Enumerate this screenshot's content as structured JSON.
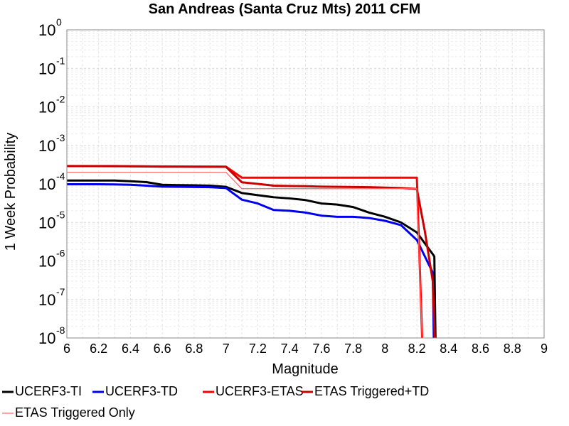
{
  "chart_data": {
    "type": "line",
    "title": "San Andreas (Santa Cruz Mts) 2011 CFM",
    "xlabel": "Magnitude",
    "ylabel": "1 Week Probability",
    "xlim": [
      6,
      9
    ],
    "ylim": [
      1e-08,
      1
    ],
    "yscale": "log",
    "grid": true,
    "legend_position": "bottom",
    "x_ticks": [
      "6",
      "6.2",
      "6.4",
      "6.6",
      "6.8",
      "7",
      "7.2",
      "7.4",
      "7.6",
      "7.8",
      "8",
      "8.2",
      "8.4",
      "8.6",
      "8.8",
      "9"
    ],
    "y_ticks": [
      {
        "base": "10",
        "exp": "0"
      },
      {
        "base": "10",
        "exp": "-1"
      },
      {
        "base": "10",
        "exp": "-2"
      },
      {
        "base": "10",
        "exp": "-3"
      },
      {
        "base": "10",
        "exp": "-4"
      },
      {
        "base": "10",
        "exp": "-5"
      },
      {
        "base": "10",
        "exp": "-6"
      },
      {
        "base": "10",
        "exp": "-7"
      },
      {
        "base": "10",
        "exp": "-8"
      }
    ],
    "series": [
      {
        "name": "UCERF3-TI",
        "color": "#000000",
        "x": [
          6.0,
          6.1,
          6.2,
          6.3,
          6.4,
          6.5,
          6.6,
          6.7,
          6.8,
          6.9,
          7.0,
          7.1,
          7.2,
          7.3,
          7.4,
          7.5,
          7.6,
          7.7,
          7.8,
          7.9,
          8.0,
          8.1,
          8.2,
          8.3,
          8.31,
          8.32
        ],
        "y": [
          0.000122,
          0.000122,
          0.000122,
          0.000122,
          0.000117,
          0.000111,
          9.5e-05,
          9.3e-05,
          9.2e-05,
          9e-05,
          8.4e-05,
          5.8e-05,
          5.1e-05,
          4.5e-05,
          4.2e-05,
          3.8e-05,
          3.1e-05,
          2.9e-05,
          2.5e-05,
          1.8e-05,
          1.4e-05,
          1e-05,
          5.5e-06,
          1.5e-06,
          1.3e-06,
          1.5e-09
        ]
      },
      {
        "name": "UCERF3-TD",
        "color": "#0000ee",
        "x": [
          6.0,
          6.1,
          6.2,
          6.3,
          6.4,
          6.5,
          6.6,
          6.7,
          6.8,
          6.9,
          7.0,
          7.1,
          7.2,
          7.3,
          7.4,
          7.5,
          7.6,
          7.7,
          7.8,
          7.9,
          8.0,
          8.1,
          8.2,
          8.3,
          8.31
        ],
        "y": [
          9.8e-05,
          9.8e-05,
          9.8e-05,
          9.7e-05,
          9.5e-05,
          9e-05,
          8.5e-05,
          8.4e-05,
          8.3e-05,
          8.2e-05,
          7.8e-05,
          3.9e-05,
          3.1e-05,
          2.1e-05,
          2e-05,
          1.8e-05,
          1.5e-05,
          1.4e-05,
          1.4e-05,
          1.3e-05,
          1.1e-05,
          8.5e-06,
          3.5e-06,
          5e-07,
          1.5e-09
        ]
      },
      {
        "name": "UCERF3-ETAS",
        "color": "#ff0000",
        "x": [
          6.0,
          7.0,
          7.1,
          8.2,
          8.24
        ],
        "y": [
          0.00029,
          0.00028,
          0.000145,
          0.000145,
          1.5e-09
        ]
      },
      {
        "name": "ETAS Triggered+TD",
        "color": "#cc0000",
        "x": [
          6.0,
          6.1,
          6.2,
          6.3,
          6.4,
          6.5,
          6.6,
          6.7,
          6.8,
          6.9,
          7.0,
          7.1,
          7.2,
          7.3,
          7.4,
          7.5,
          7.6,
          7.7,
          7.8,
          7.9,
          8.0,
          8.1,
          8.2,
          8.25,
          8.3,
          8.32
        ],
        "y": [
          0.00029,
          0.00029,
          0.00029,
          0.00029,
          0.000288,
          0.000285,
          0.00028,
          0.00028,
          0.000279,
          0.000278,
          0.000278,
          0.00011,
          0.0001,
          9e-05,
          8.8e-05,
          8.7e-05,
          8.5e-05,
          8.4e-05,
          8.3e-05,
          8.2e-05,
          8e-05,
          7.8e-05,
          7.4e-05,
          6e-06,
          3e-07,
          1.5e-09
        ]
      },
      {
        "name": "ETAS Triggered Only",
        "color": "#ff6666",
        "x": [
          6.0,
          7.0,
          7.1,
          8.2,
          8.24
        ],
        "y": [
          0.0002,
          0.0002,
          7.5e-05,
          7.5e-05,
          1.5e-09
        ]
      }
    ]
  }
}
